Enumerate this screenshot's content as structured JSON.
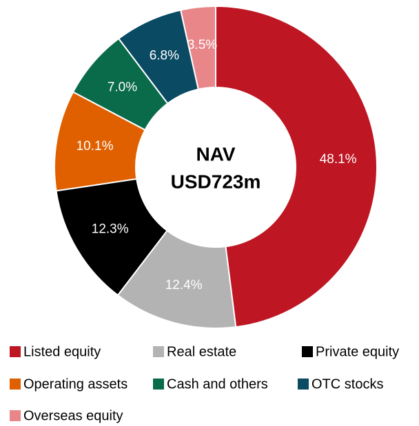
{
  "chart_data": {
    "type": "pie",
    "center_label": [
      "NAV",
      "USD723m"
    ],
    "categories": [
      "Listed equity",
      "Real estate",
      "Private equity",
      "Operating assets",
      "Cash and others",
      "OTC stocks",
      "Overseas equity"
    ],
    "values": [
      48.1,
      12.4,
      12.3,
      10.1,
      7.0,
      6.8,
      3.5
    ],
    "value_labels": [
      "48.1%",
      "12.4%",
      "12.3%",
      "10.1%",
      "7.0%",
      "6.8%",
      "3.5%"
    ],
    "colors": [
      "#be1622",
      "#b3b3b3",
      "#000000",
      "#e06000",
      "#0a6b4b",
      "#0b4a63",
      "#e8868a"
    ],
    "legend": "bottom"
  }
}
